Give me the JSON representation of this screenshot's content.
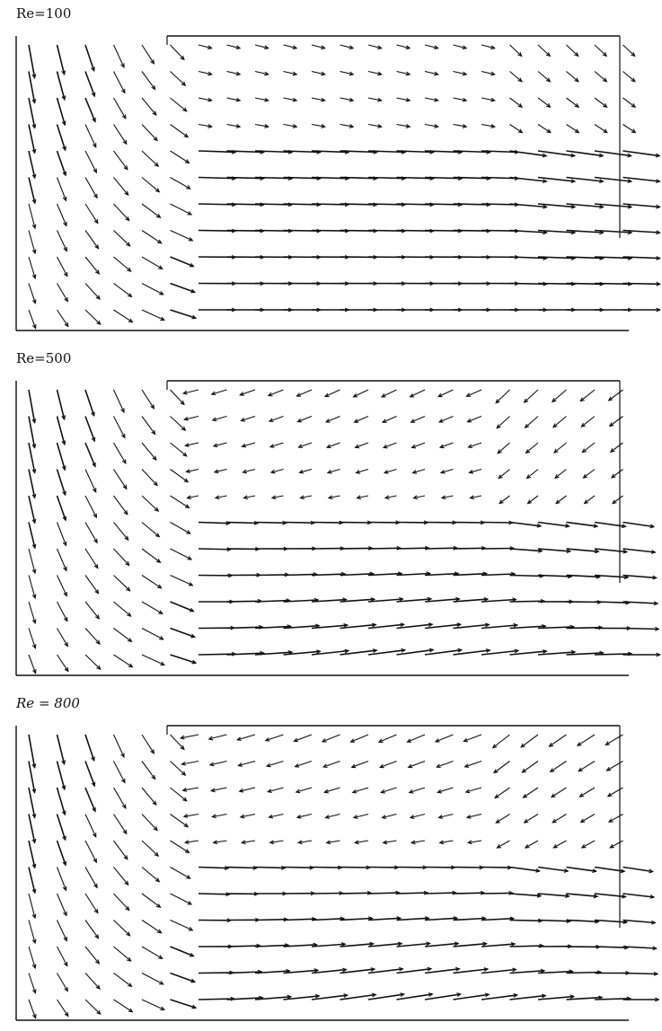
{
  "figure": {
    "panels": [
      {
        "label": "Re=100",
        "re": 100,
        "italic": false
      },
      {
        "label": "Re=500",
        "re": 500,
        "italic": false
      },
      {
        "label": "Re = 800",
        "re": 800,
        "italic": true
      }
    ]
  },
  "colors": {
    "ink": "#111111",
    "background": "#ffffff"
  }
}
